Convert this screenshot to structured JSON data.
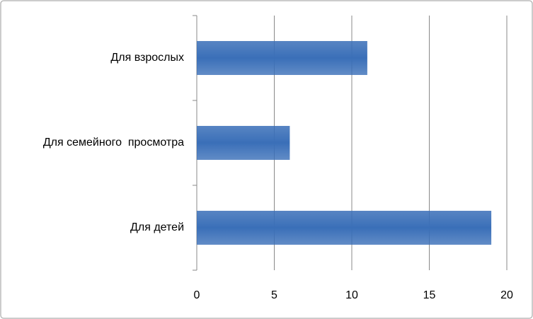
{
  "chart_data": {
    "type": "bar",
    "orientation": "horizontal",
    "categories": [
      "Для взрослых",
      "Для семейного  просмотра",
      "Для детей"
    ],
    "values": [
      11,
      6,
      19
    ],
    "color": "#3a6fb8",
    "xlim": [
      0,
      20
    ],
    "xticks": [
      0,
      5,
      10,
      15,
      20
    ],
    "grid": true
  }
}
